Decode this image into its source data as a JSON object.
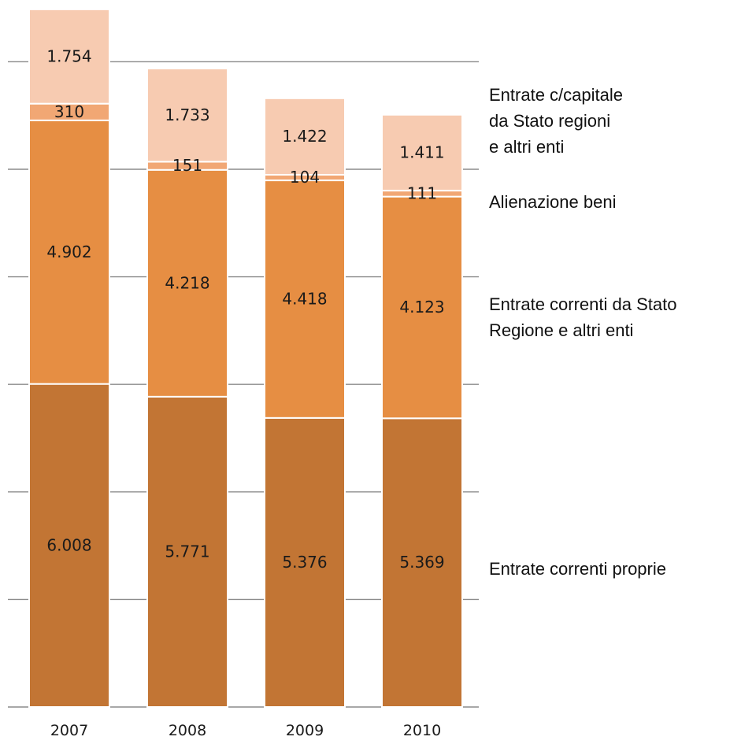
{
  "chart_data": {
    "type": "bar",
    "stacked": true,
    "categories": [
      "2007",
      "2008",
      "2009",
      "2010"
    ],
    "series": [
      {
        "name": "Entrate correnti proprie",
        "values": [
          6008,
          5771,
          5376,
          5369
        ],
        "labels": [
          "6.008",
          "5.771",
          "5.376",
          "5.369"
        ],
        "color": "#c27534"
      },
      {
        "name": "Entrate correnti da Stato Regione e altri enti",
        "values": [
          4902,
          4218,
          4418,
          4123
        ],
        "labels": [
          "4.902",
          "4.218",
          "4.418",
          "4.123"
        ],
        "color": "#e68e43"
      },
      {
        "name": "Alienazione beni",
        "values": [
          310,
          151,
          104,
          111
        ],
        "labels": [
          "310",
          "151",
          "104",
          "111"
        ],
        "color": "#f1a774"
      },
      {
        "name": "Entrate c/capitale da Stato regioni e altri enti",
        "values": [
          1754,
          1733,
          1422,
          1411
        ],
        "labels": [
          "1.754",
          "1.733",
          "1.422",
          "1.411"
        ],
        "color": "#f7cbb1"
      }
    ],
    "legend_lines": [
      [
        "Entrate c/capitale",
        "da Stato  regioni",
        "e altri enti"
      ],
      [
        "Alienazione beni"
      ],
      [
        "Entrate correnti da Stato",
        "Regione e altri enti"
      ],
      [
        "Entrate correnti proprie"
      ]
    ],
    "ylim": [
      0,
      14000
    ],
    "grid_step": 2000,
    "legend_position": "right",
    "grid": true
  }
}
